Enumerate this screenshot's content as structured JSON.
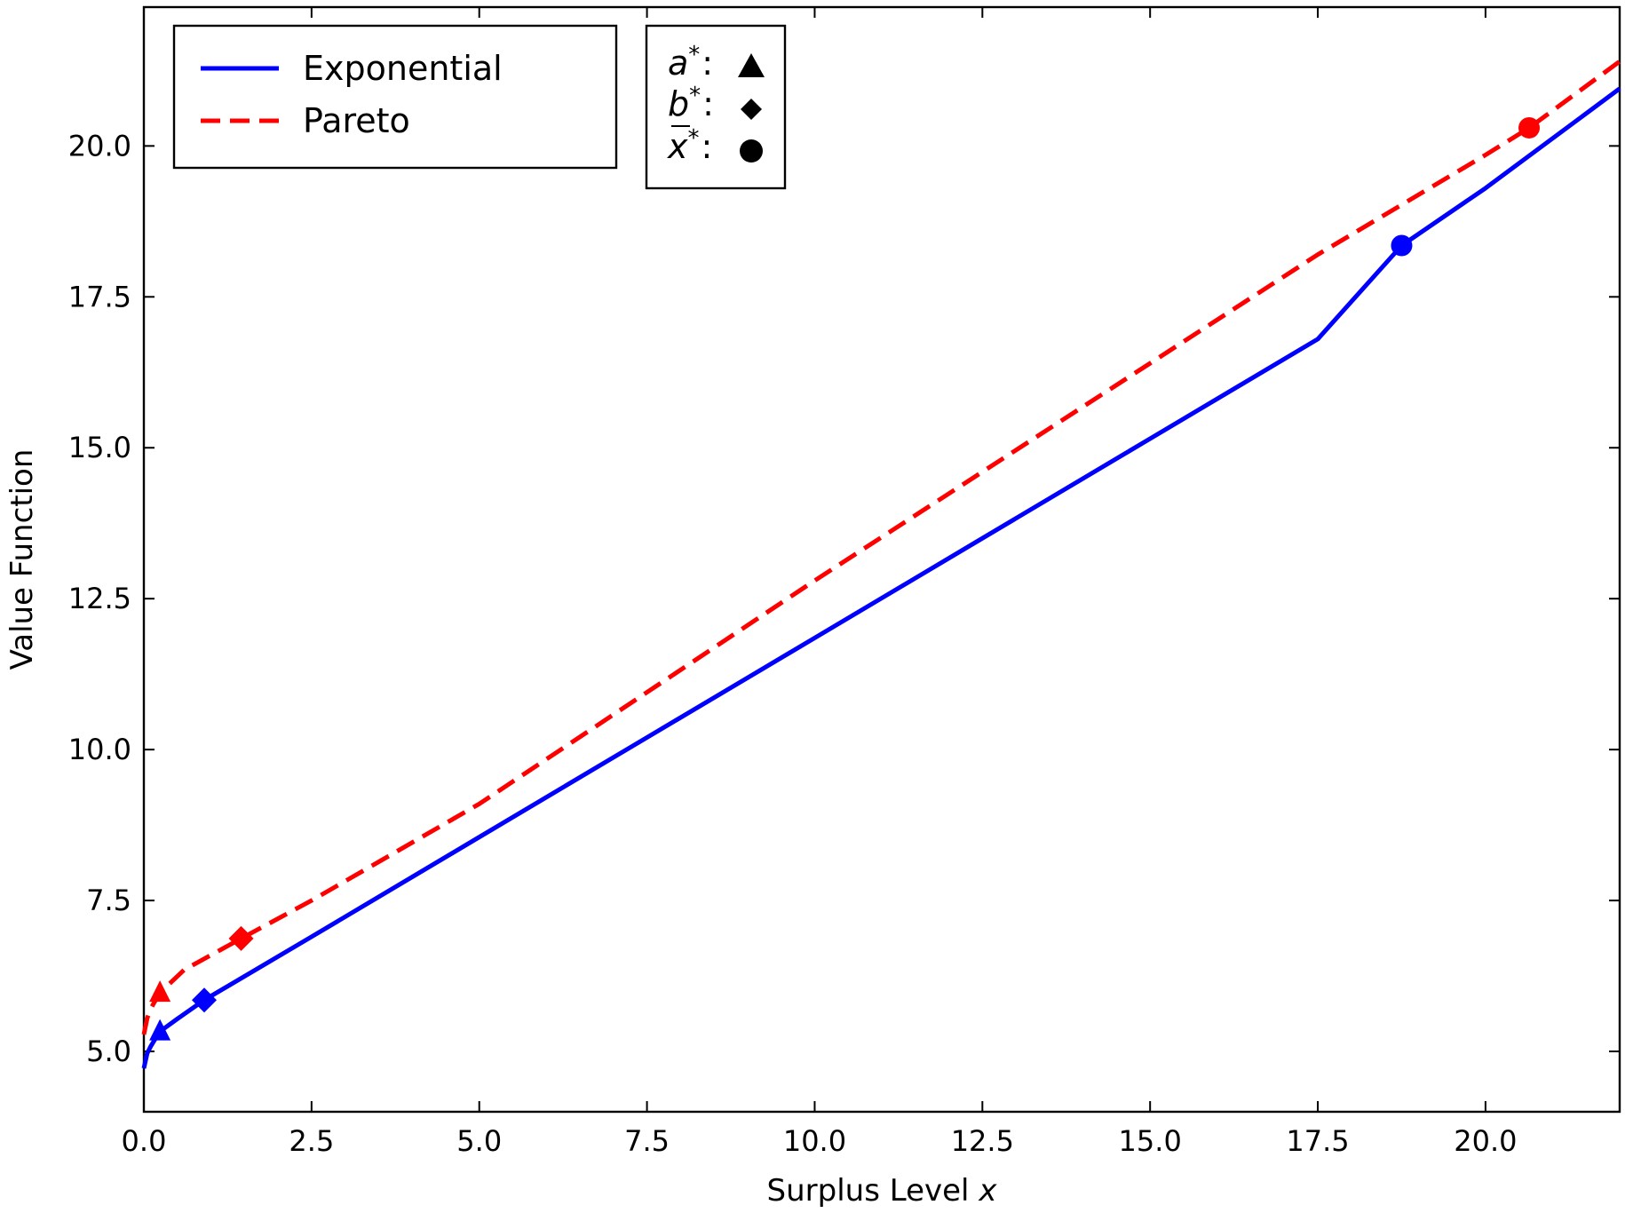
{
  "chart_data": {
    "type": "line",
    "xlabel": "Surplus Level",
    "xlabel_var": "x",
    "ylabel": "Value Function",
    "xlim": [
      0,
      22
    ],
    "ylim": [
      4,
      22.3
    ],
    "xticks": [
      0.0,
      2.5,
      5.0,
      7.5,
      10.0,
      12.5,
      15.0,
      17.5,
      20.0
    ],
    "xtick_labels": [
      "0.0",
      "2.5",
      "5.0",
      "7.5",
      "10.0",
      "12.5",
      "15.0",
      "17.5",
      "20.0"
    ],
    "yticks": [
      5.0,
      7.5,
      10.0,
      12.5,
      15.0,
      17.5,
      20.0
    ],
    "ytick_labels": [
      "5.0",
      "7.5",
      "10.0",
      "12.5",
      "15.0",
      "17.5",
      "20.0"
    ],
    "grid": false,
    "legend_placement": "top-left",
    "series": [
      {
        "name": "Exponential",
        "color": "#0000ff",
        "style": "solid",
        "x": [
          0.0,
          0.05,
          0.1,
          0.15,
          0.24,
          0.5,
          0.9,
          2.5,
          5.0,
          7.5,
          10.0,
          12.5,
          15.0,
          17.5,
          18.75,
          20.0,
          22.0
        ],
        "y": [
          4.72,
          4.97,
          5.08,
          5.17,
          5.33,
          5.54,
          5.85,
          6.9,
          8.55,
          10.2,
          11.85,
          13.5,
          15.15,
          16.8,
          18.35,
          19.3,
          20.95
        ],
        "markers": [
          {
            "type": "a*",
            "shape": "triangle",
            "x": 0.24,
            "y": 5.33
          },
          {
            "type": "b*",
            "shape": "diamond",
            "x": 0.9,
            "y": 5.85
          },
          {
            "type": "x_bar*",
            "shape": "circle",
            "x": 18.75,
            "y": 18.35
          }
        ]
      },
      {
        "name": "Pareto",
        "color": "#ff0000",
        "style": "dashed",
        "x": [
          0.0,
          0.05,
          0.1,
          0.15,
          0.24,
          0.6,
          1.45,
          2.5,
          5.0,
          7.5,
          10.0,
          12.5,
          15.0,
          17.5,
          20.0,
          20.65,
          22.0
        ],
        "y": [
          5.28,
          5.55,
          5.7,
          5.8,
          5.97,
          6.35,
          6.87,
          7.5,
          9.1,
          10.95,
          12.8,
          14.6,
          16.4,
          18.2,
          19.85,
          20.3,
          21.4
        ],
        "markers": [
          {
            "type": "a*",
            "shape": "triangle",
            "x": 0.24,
            "y": 5.97
          },
          {
            "type": "b*",
            "shape": "diamond",
            "x": 1.45,
            "y": 6.87
          },
          {
            "type": "x_bar*",
            "shape": "circle",
            "x": 20.65,
            "y": 20.3
          }
        ]
      }
    ],
    "marker_legend": [
      {
        "symbol": "a",
        "superscript": "*",
        "sep": ":",
        "shape": "triangle",
        "overline": false
      },
      {
        "symbol": "b",
        "superscript": "*",
        "sep": ":",
        "shape": "diamond",
        "overline": false
      },
      {
        "symbol": "x",
        "superscript": "*",
        "sep": ":",
        "shape": "circle",
        "overline": true
      }
    ]
  }
}
